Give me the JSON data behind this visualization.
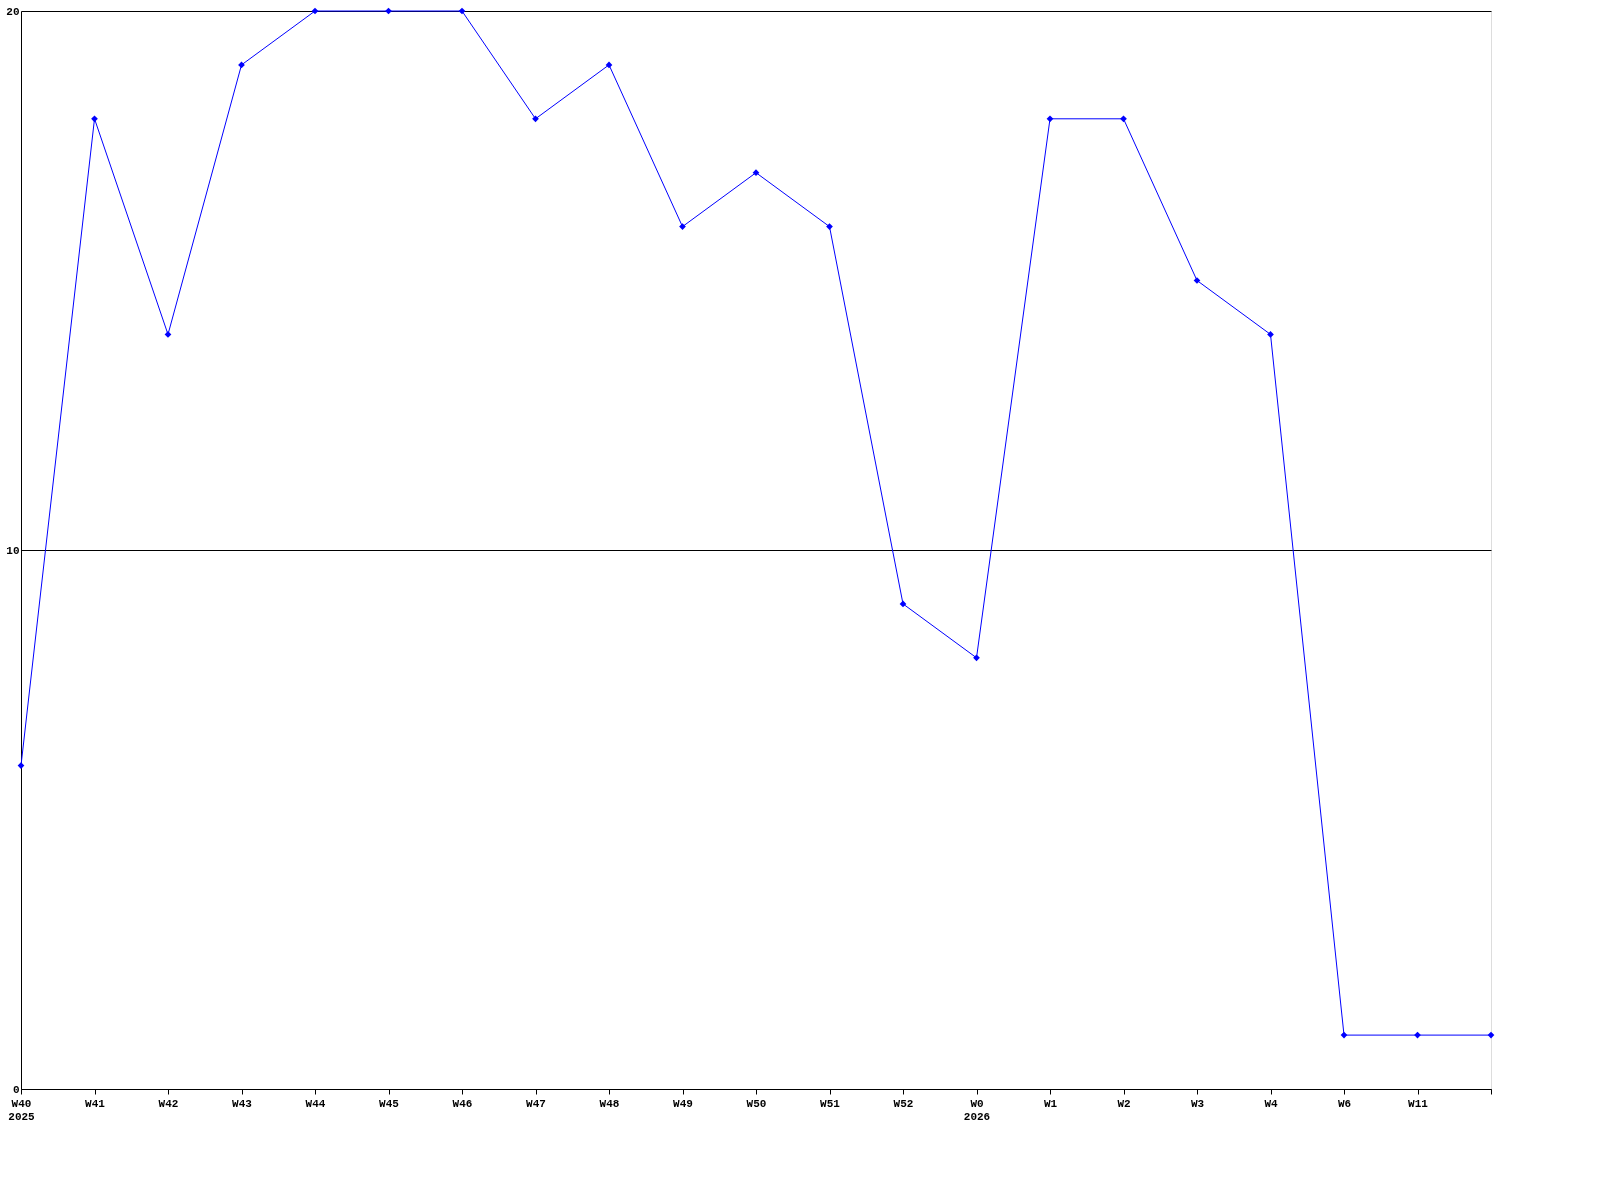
{
  "chart_data": {
    "type": "line",
    "categories": [
      "W40\n2025",
      "W41",
      "W42",
      "W43",
      "W44",
      "W45",
      "W46",
      "W47",
      "W48",
      "W49",
      "W50",
      "W51",
      "W52",
      "W0\n2026",
      "W1",
      "W2",
      "W3",
      "W4",
      "W6",
      "W11",
      null
    ],
    "series": [
      {
        "color": "#0000ff",
        "values": [
          6,
          18,
          14,
          19,
          20,
          20,
          20,
          18,
          19,
          16,
          17,
          16,
          9,
          8,
          18,
          18,
          15,
          14,
          1,
          1,
          1
        ]
      }
    ],
    "ylim": [
      0,
      20
    ],
    "yticks": [
      0,
      10,
      20
    ],
    "grid": "y",
    "marker": "diamond",
    "line_style": "solid"
  }
}
